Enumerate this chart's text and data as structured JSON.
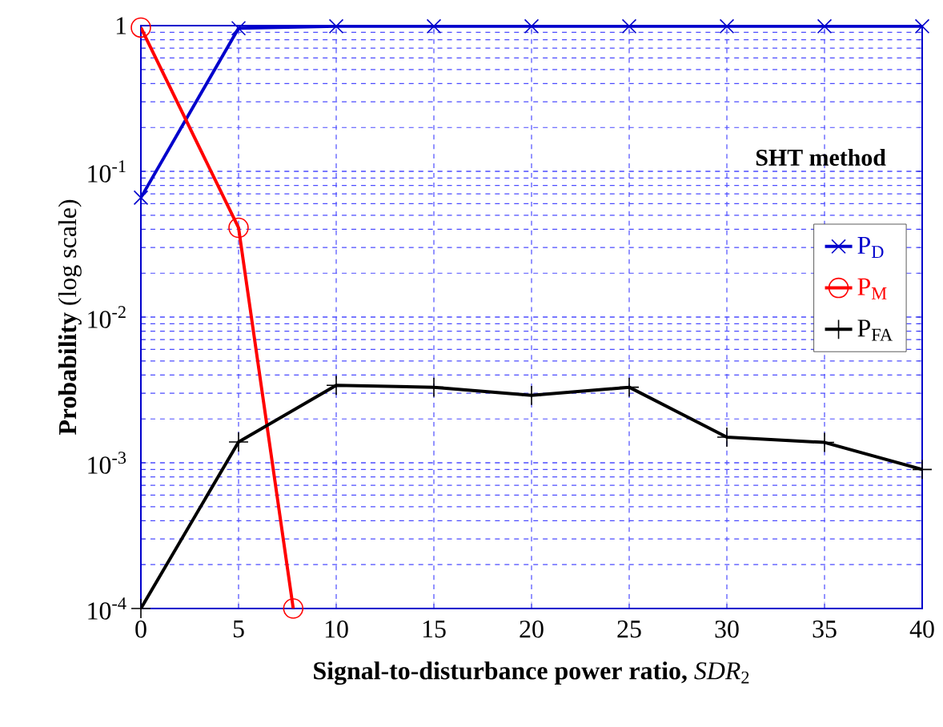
{
  "chart_data": {
    "type": "line",
    "xlabel": "**Signal-to-disturbance power ratio,** *SDR*$_{2}$",
    "ylabel": "**Probability** (log scale)",
    "legend_title": "SHT  method",
    "x": [
      0,
      5,
      10,
      15,
      20,
      25,
      30,
      35,
      40
    ],
    "series": [
      {
        "name": "P$_{D}$",
        "color": "#0000cc",
        "marker": "cross",
        "values": [
          0.066,
          0.96,
          0.99,
          0.99,
          0.99,
          0.99,
          0.99,
          0.99,
          0.99
        ]
      },
      {
        "name": "P$_{M}$",
        "color": "#ff0000",
        "marker": "circle",
        "x": [
          0,
          5,
          7.8
        ],
        "values": [
          0.97,
          0.041,
          0.0001
        ]
      },
      {
        "name": "P$_{FA}$",
        "color": "#000000",
        "marker": "plus",
        "values": [
          0.0001,
          0.00139,
          0.0034,
          0.0033,
          0.0029,
          0.0033,
          0.0015,
          0.00138,
          0.0009
        ]
      }
    ],
    "log": "y",
    "grid": true,
    "legend": "right",
    "line_style": "solid",
    "xlim": [
      0,
      40
    ],
    "ylim": [
      0.0001,
      1
    ],
    "xticks": [
      0,
      5,
      10,
      15,
      20,
      25,
      30,
      35,
      40
    ],
    "yticks": [
      {
        "value": 0.0001,
        "label": "10$^{-4}$"
      },
      {
        "value": 0.001,
        "label": "10$^{-3}$"
      },
      {
        "value": 0.01,
        "label": "10$^{-2}$"
      },
      {
        "value": 0.1,
        "label": "10$^{-1}$"
      },
      {
        "value": 1,
        "label": "1"
      }
    ]
  }
}
